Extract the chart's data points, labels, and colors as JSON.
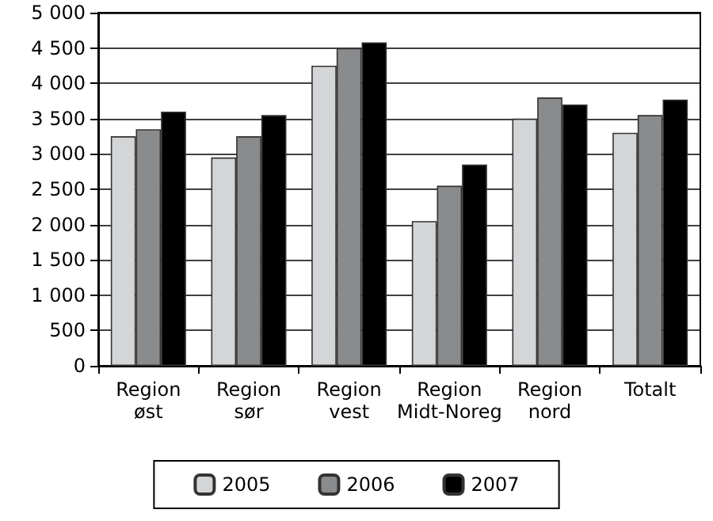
{
  "chart_data": {
    "type": "bar",
    "categories": [
      "Region\nøst",
      "Region\nsør",
      "Region\nvest",
      "Region\nMidt-Noreg",
      "Region\nnord",
      "Totalt"
    ],
    "series": [
      {
        "name": "2005",
        "color": "#d4d5d7",
        "values": [
          3250,
          2950,
          4250,
          2050,
          3500,
          3300
        ]
      },
      {
        "name": "2006",
        "color": "#8a8b8d",
        "values": [
          3350,
          3250,
          4500,
          2550,
          3800,
          3550
        ]
      },
      {
        "name": "2007",
        "color": "#000000",
        "values": [
          3600,
          3550,
          4580,
          2850,
          3700,
          3770
        ]
      }
    ],
    "ylim": [
      0,
      5000
    ],
    "yticks": [
      0,
      500,
      {
        "value": 1000,
        "label": "1 000"
      },
      {
        "value": 1500,
        "label": "1 500"
      },
      {
        "value": 2000,
        "label": "2 000"
      },
      {
        "value": 2500,
        "label": "2 500"
      },
      {
        "value": 3000,
        "label": "3 000"
      },
      {
        "value": 3500,
        "label": "3 500"
      },
      {
        "value": 4000,
        "label": "4 000"
      },
      {
        "value": 4500,
        "label": "4 500"
      },
      {
        "value": 5000,
        "label": "5 000"
      }
    ],
    "grid": "y",
    "legend": "bottom"
  }
}
